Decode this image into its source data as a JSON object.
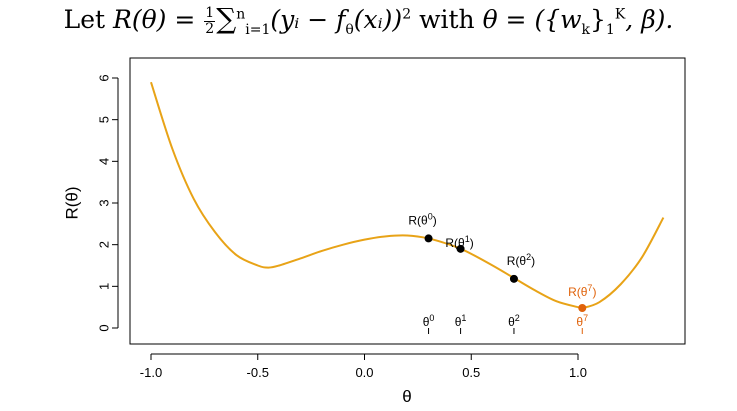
{
  "formula": {
    "lead": "Let",
    "lhs": "R(θ) =",
    "frac_num": "1",
    "frac_den": "2",
    "sum": "∑",
    "sum_sup": "n",
    "sum_sub": "i=1",
    "term": "(yᵢ − f",
    "f_sub": "θ",
    "term2": "(xᵢ))",
    "sq": "2",
    "with": "with",
    "theta_def": "θ = ({w",
    "k_sub": "k",
    "brace": "}",
    "one_sub": "1",
    "K_sup": "K",
    "beta": ", β)."
  },
  "chart_data": {
    "type": "line",
    "xlabel": "θ",
    "ylabel": "R(θ)",
    "xlim": [
      -1.0,
      1.4
    ],
    "ylim": [
      0,
      6
    ],
    "xticks": [
      "-1.0",
      "-0.5",
      "0.0",
      "0.5",
      "1.0"
    ],
    "yticks": [
      "0",
      "1",
      "2",
      "3",
      "4",
      "5",
      "6"
    ],
    "curve_color": "#E8A317",
    "highlight_color": "#E0620A",
    "curve": {
      "x": [
        -1.0,
        -0.9,
        -0.8,
        -0.7,
        -0.6,
        -0.5,
        -0.45,
        -0.4,
        -0.3,
        -0.2,
        -0.1,
        0.0,
        0.1,
        0.2,
        0.3,
        0.4,
        0.45,
        0.5,
        0.6,
        0.7,
        0.8,
        0.9,
        1.0,
        1.02,
        1.1,
        1.2,
        1.3,
        1.4
      ],
      "y": [
        5.9,
        4.3,
        3.1,
        2.3,
        1.75,
        1.5,
        1.45,
        1.5,
        1.67,
        1.85,
        2.0,
        2.12,
        2.2,
        2.22,
        2.15,
        2.0,
        1.9,
        1.78,
        1.5,
        1.2,
        0.9,
        0.64,
        0.5,
        0.48,
        0.62,
        1.05,
        1.7,
        2.65
      ]
    },
    "points": [
      {
        "x": 0.3,
        "y": 2.15,
        "label_base": "R(θ",
        "label_sup": "0",
        "tick_base": "θ",
        "tick_sup": "0",
        "highlight": false
      },
      {
        "x": 0.45,
        "y": 1.9,
        "label_base": "R(θ",
        "label_sup": "1",
        "tick_base": "θ",
        "tick_sup": "1",
        "highlight": false
      },
      {
        "x": 0.7,
        "y": 1.18,
        "label_base": "R(θ",
        "label_sup": "2",
        "tick_base": "θ",
        "tick_sup": "2",
        "highlight": false
      },
      {
        "x": 1.02,
        "y": 0.48,
        "label_base": "R(θ",
        "label_sup": "7",
        "tick_base": "θ",
        "tick_sup": "7",
        "highlight": true
      }
    ]
  }
}
